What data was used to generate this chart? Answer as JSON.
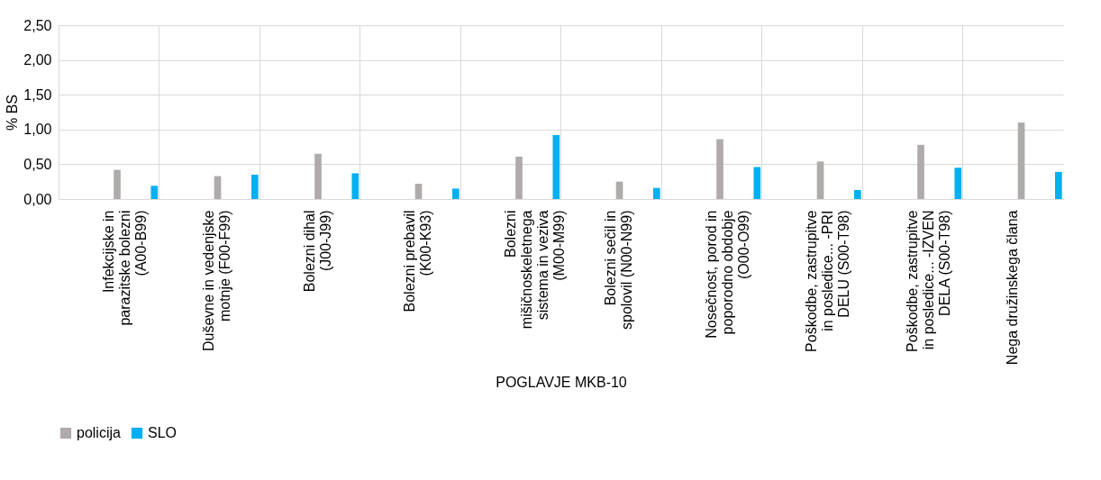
{
  "chart_data": {
    "type": "bar",
    "xlabel": "POGLAVJE MKB-10",
    "ylabel": "% BS",
    "categories": [
      "Infekcijske in parazitske bolezni (A00-B99)",
      "Duševne in vedenjske motnje (F00-F99)",
      "Bolezni dihal (J00-J99)",
      "Bolezni prebavil (K00-K93)",
      "Bolezni mišičnoskeletnega sistema in veziva (M00-M99)",
      "Bolezni sečil in spolovil (N00-N99)",
      "Nosečnost, porod in poporodno obdobje (O00-O99)",
      "Poškodbe, zastrupitve in posledice... -PRI DELU (S00-T98)",
      "Poškodbe, zastrupitve in posledice... -IZVEN DELA (S00-T98)",
      "Nega družinskega člana"
    ],
    "series": [
      {
        "name": "policija",
        "color": "#afabab",
        "values": [
          0.42,
          0.33,
          0.65,
          0.22,
          0.61,
          0.25,
          0.86,
          0.54,
          0.78,
          1.1
        ]
      },
      {
        "name": "SLO",
        "color": "#00b0f0",
        "values": [
          0.19,
          0.35,
          0.37,
          0.15,
          0.92,
          0.16,
          0.46,
          0.13,
          0.45,
          0.39
        ]
      }
    ],
    "ylim": [
      0,
      2.5
    ],
    "yticks": [
      {
        "value": 0,
        "label": "0,00"
      },
      {
        "value": 0.5,
        "label": "0,50"
      },
      {
        "value": 1,
        "label": "1,00"
      },
      {
        "value": 1.5,
        "label": "1,50"
      },
      {
        "value": 2,
        "label": "2,00"
      },
      {
        "value": 2.5,
        "label": "2,50"
      }
    ],
    "grid": true,
    "legend": "bottom"
  }
}
